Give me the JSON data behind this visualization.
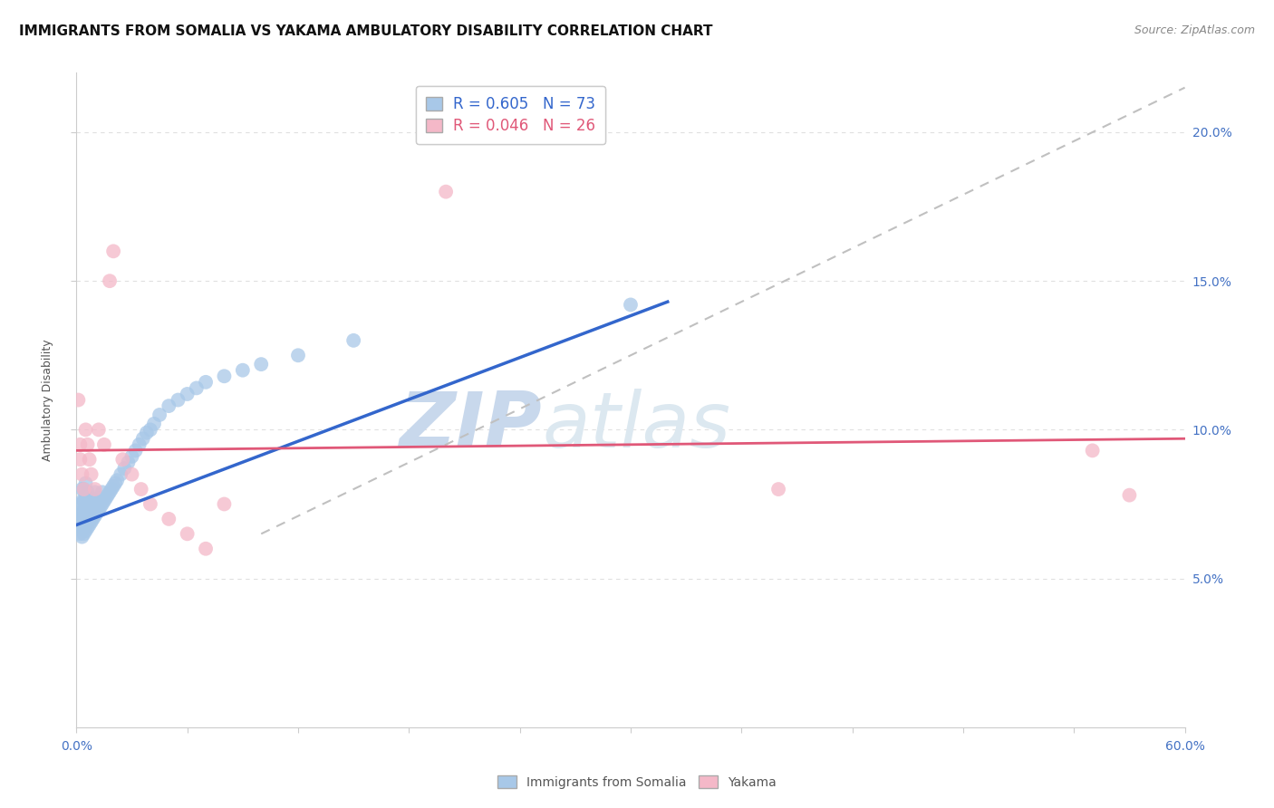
{
  "title": "IMMIGRANTS FROM SOMALIA VS YAKAMA AMBULATORY DISABILITY CORRELATION CHART",
  "source": "Source: ZipAtlas.com",
  "ylabel": "Ambulatory Disability",
  "xlabel_blue": "Immigrants from Somalia",
  "xlabel_pink": "Yakama",
  "xlim": [
    0.0,
    0.6
  ],
  "ylim": [
    0.0,
    0.22
  ],
  "legend_blue_R": "R = 0.605",
  "legend_blue_N": "N = 73",
  "legend_pink_R": "R = 0.046",
  "legend_pink_N": "N = 26",
  "blue_color": "#a8c8e8",
  "pink_color": "#f4b8c8",
  "blue_line_color": "#3366cc",
  "pink_line_color": "#e05878",
  "dashed_line_color": "#c0c0c0",
  "watermark_color": "#dde8f0",
  "background_color": "#ffffff",
  "grid_color": "#e0e0e0",
  "title_fontsize": 11,
  "axis_label_fontsize": 9,
  "tick_fontsize": 10,
  "tick_color": "#4472c4",
  "legend_fontsize": 11,
  "blue_scatter_x": [
    0.001,
    0.001,
    0.002,
    0.002,
    0.002,
    0.002,
    0.003,
    0.003,
    0.003,
    0.003,
    0.003,
    0.004,
    0.004,
    0.004,
    0.004,
    0.004,
    0.005,
    0.005,
    0.005,
    0.005,
    0.005,
    0.006,
    0.006,
    0.006,
    0.006,
    0.007,
    0.007,
    0.007,
    0.008,
    0.008,
    0.008,
    0.009,
    0.009,
    0.01,
    0.01,
    0.01,
    0.011,
    0.011,
    0.012,
    0.012,
    0.013,
    0.014,
    0.014,
    0.015,
    0.016,
    0.017,
    0.018,
    0.019,
    0.02,
    0.021,
    0.022,
    0.024,
    0.026,
    0.028,
    0.03,
    0.032,
    0.034,
    0.036,
    0.038,
    0.04,
    0.042,
    0.045,
    0.05,
    0.055,
    0.06,
    0.065,
    0.07,
    0.08,
    0.09,
    0.1,
    0.12,
    0.15,
    0.3
  ],
  "blue_scatter_y": [
    0.068,
    0.072,
    0.065,
    0.07,
    0.075,
    0.068,
    0.064,
    0.068,
    0.072,
    0.076,
    0.08,
    0.065,
    0.068,
    0.072,
    0.076,
    0.08,
    0.066,
    0.07,
    0.074,
    0.078,
    0.082,
    0.067,
    0.071,
    0.075,
    0.079,
    0.068,
    0.072,
    0.076,
    0.069,
    0.073,
    0.077,
    0.07,
    0.074,
    0.071,
    0.075,
    0.079,
    0.072,
    0.076,
    0.073,
    0.077,
    0.074,
    0.075,
    0.079,
    0.076,
    0.077,
    0.078,
    0.079,
    0.08,
    0.081,
    0.082,
    0.083,
    0.085,
    0.087,
    0.089,
    0.091,
    0.093,
    0.095,
    0.097,
    0.099,
    0.1,
    0.102,
    0.105,
    0.108,
    0.11,
    0.112,
    0.114,
    0.116,
    0.118,
    0.12,
    0.122,
    0.125,
    0.13,
    0.142
  ],
  "pink_scatter_x": [
    0.001,
    0.002,
    0.002,
    0.003,
    0.004,
    0.005,
    0.006,
    0.007,
    0.008,
    0.01,
    0.012,
    0.015,
    0.018,
    0.02,
    0.025,
    0.03,
    0.035,
    0.04,
    0.05,
    0.06,
    0.07,
    0.08,
    0.2,
    0.38,
    0.55,
    0.57
  ],
  "pink_scatter_y": [
    0.11,
    0.09,
    0.095,
    0.085,
    0.08,
    0.1,
    0.095,
    0.09,
    0.085,
    0.08,
    0.1,
    0.095,
    0.15,
    0.16,
    0.09,
    0.085,
    0.08,
    0.075,
    0.07,
    0.065,
    0.06,
    0.075,
    0.18,
    0.08,
    0.093,
    0.078
  ],
  "blue_line_x": [
    0.0,
    0.32
  ],
  "blue_line_y": [
    0.068,
    0.143
  ],
  "pink_line_x": [
    0.0,
    0.6
  ],
  "pink_line_y": [
    0.093,
    0.097
  ],
  "dashed_line_x": [
    0.1,
    0.6
  ],
  "dashed_line_y": [
    0.065,
    0.215
  ]
}
